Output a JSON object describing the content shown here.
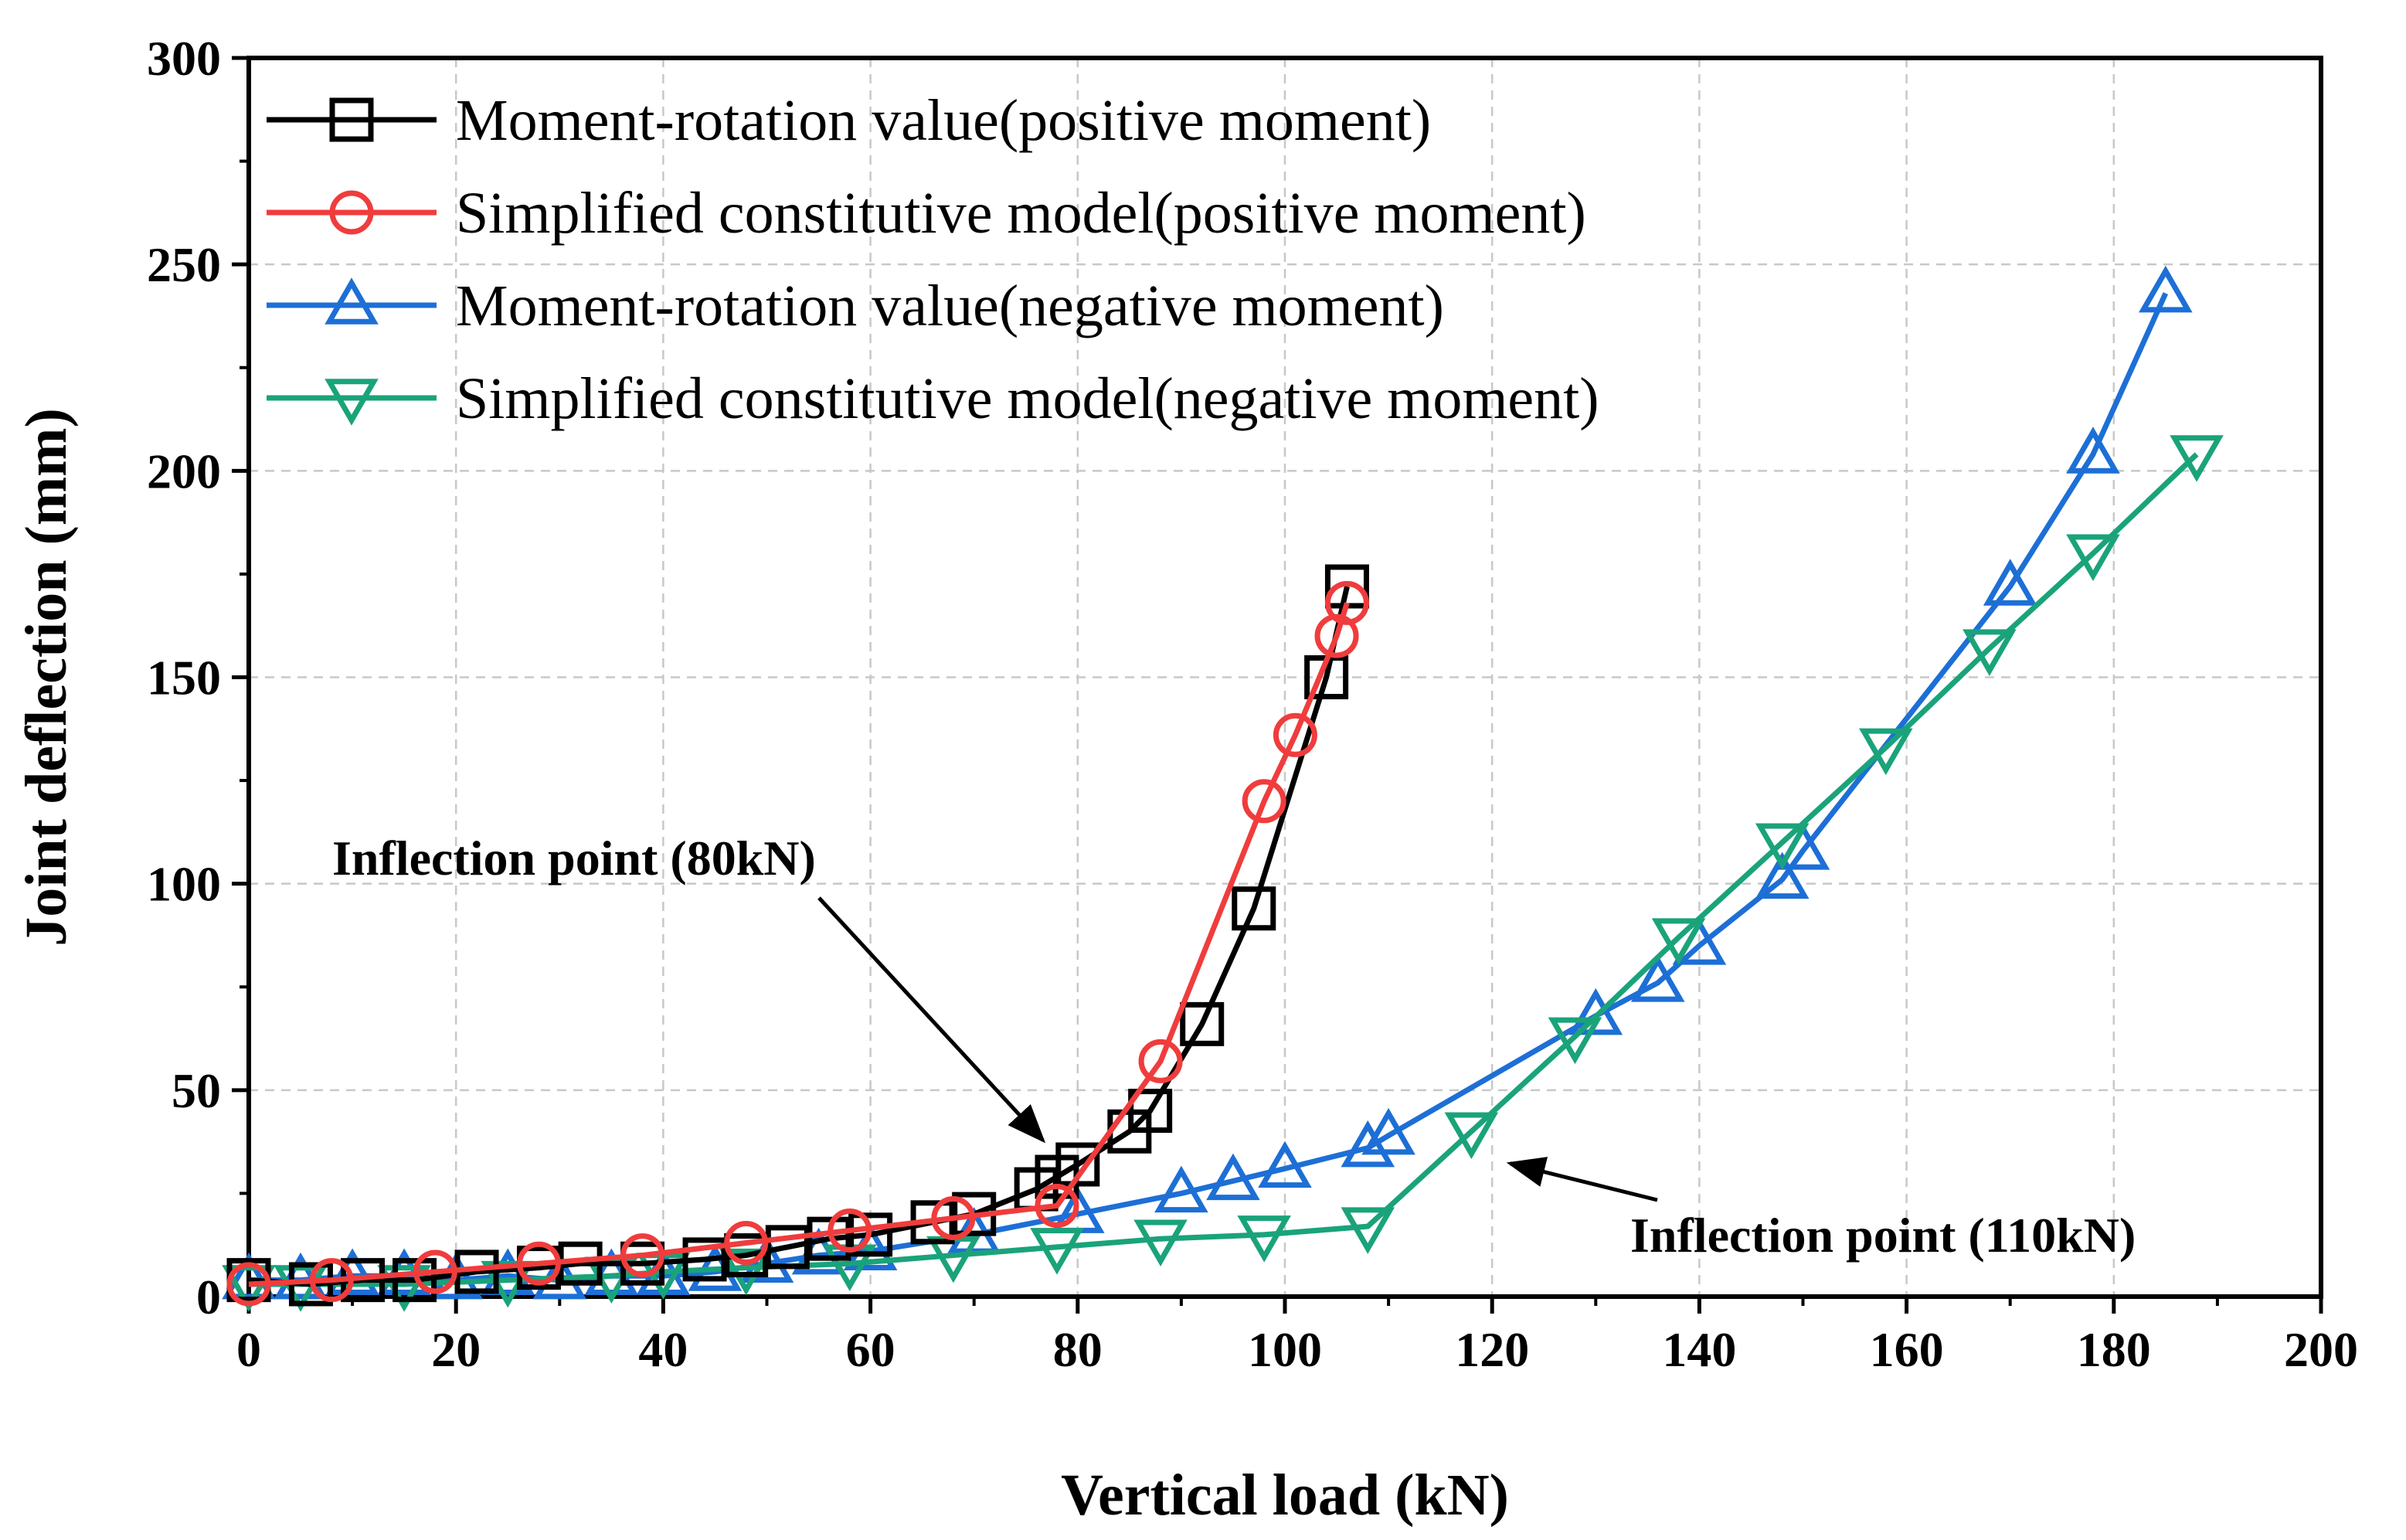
{
  "chart_data": {
    "type": "line",
    "xlabel": "Vertical load (kN)",
    "ylabel": "Joint deflection (mm)",
    "xlim": [
      0,
      200
    ],
    "ylim": [
      0,
      300
    ],
    "xticks": [
      0,
      20,
      40,
      60,
      80,
      100,
      120,
      140,
      160,
      180,
      200
    ],
    "yticks": [
      0,
      50,
      100,
      150,
      200,
      250,
      300
    ],
    "grid": true,
    "legend_position": "top-left",
    "series": [
      {
        "name": "Moment-rotation value(positive moment)",
        "color": "#000000",
        "marker": "square",
        "x": [
          0,
          6,
          11,
          16,
          22,
          28,
          32,
          38,
          44,
          48,
          52,
          56,
          60,
          66,
          70,
          76,
          78,
          80,
          85,
          87,
          92,
          97,
          104,
          106
        ],
        "y": [
          4,
          3,
          4,
          4,
          6,
          7,
          8,
          8,
          9,
          10,
          12,
          14,
          15,
          18,
          20,
          26,
          29,
          32,
          40,
          45,
          66,
          94,
          150,
          172
        ]
      },
      {
        "name": "Simplified constitutive model(positive moment)",
        "color": "#f03c3c",
        "marker": "circle",
        "x": [
          0,
          8,
          18,
          28,
          38,
          48,
          58,
          68,
          78,
          88,
          98,
          101,
          105,
          106
        ],
        "y": [
          3,
          4,
          6,
          8,
          10,
          13,
          16,
          19,
          22,
          57,
          120,
          136,
          160,
          168
        ]
      },
      {
        "name": "Moment-rotation value(negative moment)",
        "color": "#1d6fd6",
        "marker": "triangle-up",
        "x": [
          0,
          5,
          10,
          15,
          20,
          25,
          30,
          35,
          40,
          45,
          50,
          55,
          60,
          70,
          80,
          90,
          95,
          100,
          108,
          110,
          130,
          136,
          140,
          148,
          150,
          170,
          178,
          185
        ],
        "y": [
          4,
          4,
          5,
          5,
          4,
          5,
          4,
          5,
          5,
          6,
          8,
          10,
          11,
          15,
          20,
          25,
          28,
          31,
          36,
          39,
          68,
          76,
          85,
          101,
          108,
          172,
          204,
          243
        ]
      },
      {
        "name": "Simplified constitutive model(negative moment)",
        "color": "#1aa37a",
        "marker": "triangle-down",
        "x": [
          0,
          5,
          15,
          25,
          35,
          40,
          48,
          58,
          68,
          78,
          88,
          98,
          108,
          118,
          128,
          138,
          148,
          158,
          168,
          178,
          188
        ],
        "y": [
          3,
          3,
          3,
          4,
          5,
          6,
          7,
          8,
          10,
          12,
          14,
          15,
          17,
          40,
          63,
          87,
          110,
          133,
          157,
          180,
          204
        ]
      }
    ],
    "annotations": [
      {
        "text": "Inflection point (80kN)",
        "arrow_to": [
          75,
          36
        ],
        "text_anchor_data": [
          45,
          103
        ]
      },
      {
        "text": "Inflection point (110kN)",
        "arrow_to": [
          121,
          33
        ],
        "text_anchor_data": [
          171,
          16
        ]
      }
    ]
  }
}
